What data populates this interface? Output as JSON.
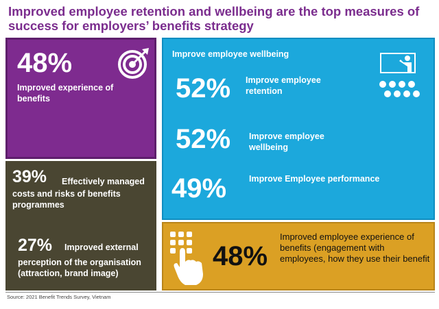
{
  "title": "Improved employee retention and wellbeing are the top measures of success for employers’ benefits strategy",
  "purple": {
    "value": "48%",
    "label": "Improved experience of benefits"
  },
  "olive": {
    "item1_value": "39%",
    "item1_label_a": "Effectively managed",
    "item1_label_b": "costs and risks of benefits programmes",
    "item2_value": "27%",
    "item2_label_a": "Improved external",
    "item2_label_b": "perception of the organisation (attraction, brand image)"
  },
  "blue": {
    "heading": "Improve employee wellbeing",
    "row1_value": "52%",
    "row1_label": "Improve employee retention",
    "row2_value": "52%",
    "row2_label": "Improve employee wellbeing",
    "row3_value": "49%",
    "row3_label": "Improve Employee performance"
  },
  "gold": {
    "value": "48%",
    "label": "Improved employee experience of benefits (engagement with employees, how they use their benefit"
  },
  "source": "Source: 2021 Benefit Trends Survey, Vietnam",
  "colors": {
    "title": "#7b2d8e",
    "purple": "#7e2b8f",
    "olive": "#4a4632",
    "blue": "#1ca8dc",
    "gold": "#dba024"
  },
  "icons": [
    "target-icon",
    "presentation-icon",
    "touch-keypad-icon"
  ],
  "chart_data": {
    "type": "table",
    "title": "Improved employee retention and wellbeing are the top measures of success for employers’ benefits strategy",
    "rows": [
      {
        "label": "Improved experience of benefits",
        "value": 48
      },
      {
        "label": "Effectively managed costs and risks of benefits programmes",
        "value": 39
      },
      {
        "label": "Improved external perception of the organisation (attraction, brand image)",
        "value": 27
      },
      {
        "label": "Improve employee retention",
        "value": 52
      },
      {
        "label": "Improve employee wellbeing",
        "value": 52
      },
      {
        "label": "Improve Employee performance",
        "value": 49
      },
      {
        "label": "Improved employee experience of benefits (engagement with employees, how they use their benefit",
        "value": 48
      }
    ],
    "unit": "%"
  }
}
